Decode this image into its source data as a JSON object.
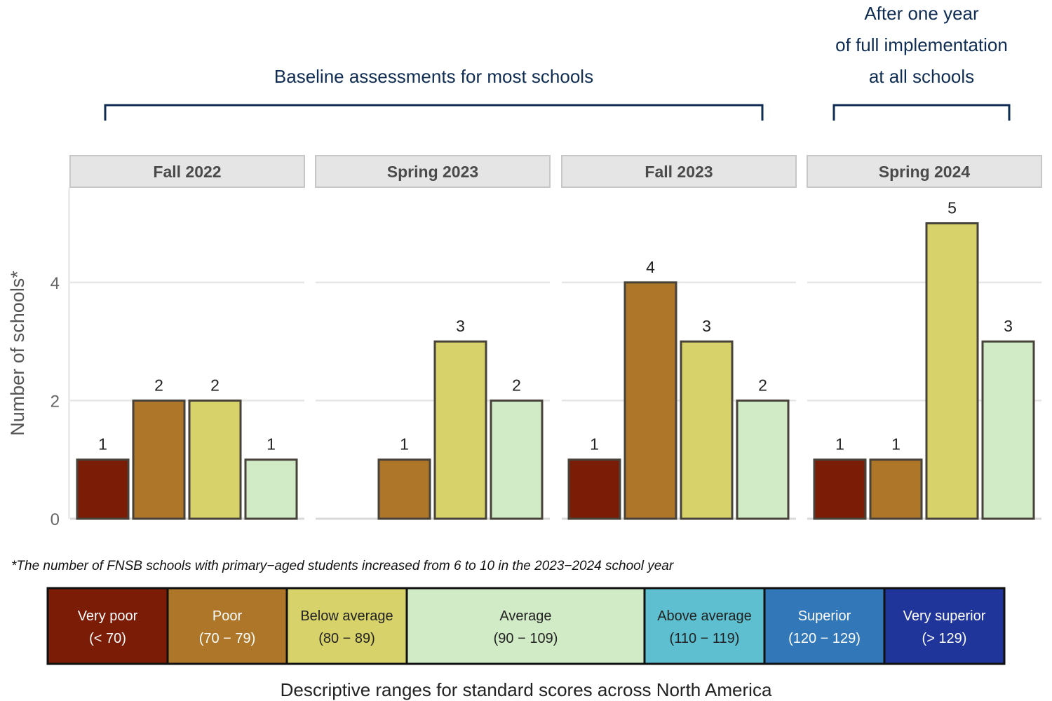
{
  "chart_data": {
    "type": "bar",
    "ylabel": "Number of schools*",
    "ylim": [
      0,
      5.6
    ],
    "yticks": [
      0,
      2,
      4
    ],
    "grid": true,
    "categories": [
      "Very poor",
      "Poor",
      "Below average",
      "Average"
    ],
    "panels": [
      {
        "title": "Fall 2022",
        "values": [
          1,
          2,
          2,
          1
        ]
      },
      {
        "title": "Spring 2023",
        "values": [
          0,
          1,
          3,
          2
        ]
      },
      {
        "title": "Fall 2023",
        "values": [
          1,
          4,
          3,
          2
        ]
      },
      {
        "title": "Spring 2024",
        "values": [
          1,
          1,
          5,
          3
        ]
      }
    ],
    "groups": [
      {
        "label_lines": [
          "Baseline assessments for most schools"
        ],
        "panels": [
          0,
          1,
          2
        ]
      },
      {
        "label_lines": [
          "After one year",
          "of full implementation",
          "at all schools"
        ],
        "panels": [
          3
        ]
      }
    ],
    "footnote": "*The number of FNSB schools with primary−aged students increased from 6 to 10 in the 2023−2024 school year",
    "legend": {
      "caption": "Descriptive ranges for standard scores across North America",
      "items": [
        {
          "name": "Very poor",
          "range": "(< 70)",
          "color": "#7b1c06",
          "text_color": "#ffffff"
        },
        {
          "name": "Poor",
          "range": "(70 − 79)",
          "color": "#ad7629",
          "text_color": "#ffffff"
        },
        {
          "name": "Below average",
          "range": "(80 − 89)",
          "color": "#d8d26a",
          "text_color": "#222222"
        },
        {
          "name": "Average",
          "range": "(90 − 109)",
          "color": "#d2ebc7",
          "text_color": "#222222"
        },
        {
          "name": "Above average",
          "range": "(110 − 119)",
          "color": "#5ebfd0",
          "text_color": "#222222"
        },
        {
          "name": "Superior",
          "range": "(120 − 129)",
          "color": "#3277b8",
          "text_color": "#ffffff"
        },
        {
          "name": "Very superior",
          "range": "(> 129)",
          "color": "#1f359a",
          "text_color": "#ffffff"
        }
      ]
    }
  }
}
